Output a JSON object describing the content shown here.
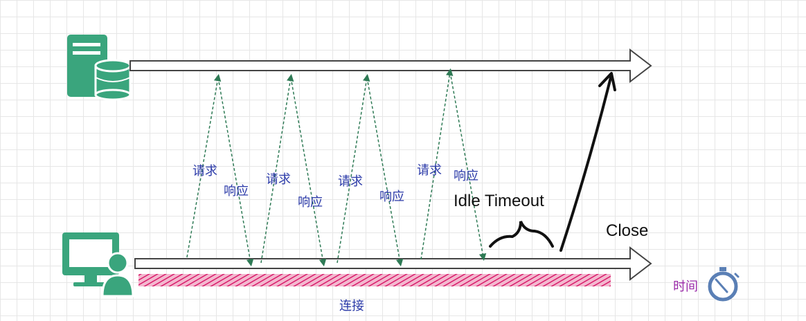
{
  "labels": {
    "request": "请求",
    "response": "响应",
    "idle_timeout": "Idle Timeout",
    "close": "Close",
    "time": "时间",
    "connection": "连接"
  },
  "colors": {
    "icon_green": "#3aa57d",
    "arrow_green": "#2e7a55",
    "label_blue": "#2b3aa8",
    "connection_pink": "#d81b6a",
    "time_purple": "#9a2aa8",
    "clock_blue": "#5a7fb5"
  },
  "icons": {
    "server": "server-database-icon",
    "client": "computer-user-icon",
    "clock": "stopwatch-icon"
  }
}
